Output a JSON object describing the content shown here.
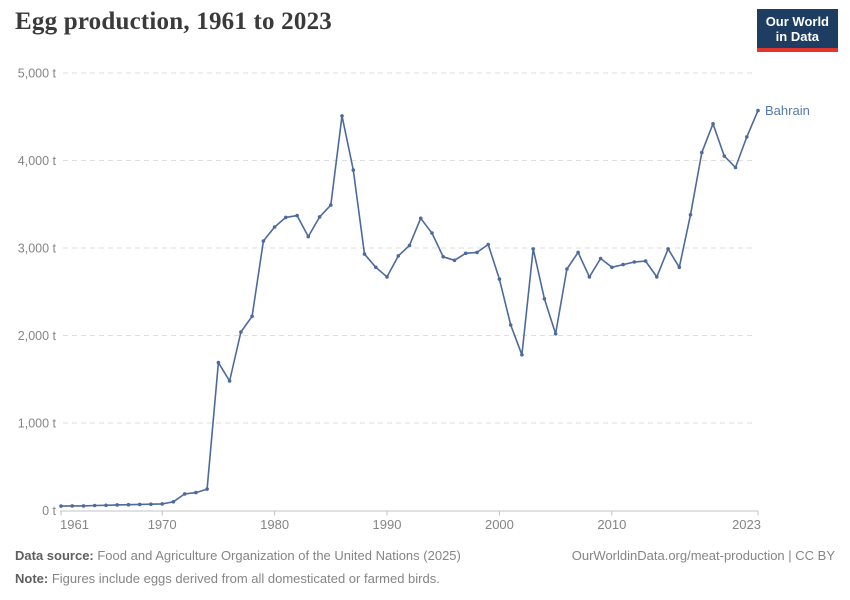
{
  "title": "Egg production, 1961 to 2023",
  "logo": {
    "line1": "Our World",
    "line2": "in Data"
  },
  "series_label": "Bahrain",
  "footer": {
    "source_label": "Data source:",
    "source_text": " Food and Agriculture Organization of the United Nations (2025)",
    "note_label": "Note:",
    "note_text": " Figures include eggs derived from all domesticated or farmed birds.",
    "credit": "OurWorldinData.org/meat-production | CC BY"
  },
  "colors": {
    "line": "#4C6A9C",
    "series_label": "#537AAD",
    "axis_text": "#858585",
    "gridline": "#dedede",
    "axis_line": "#c3c3c3",
    "logo_bg": "#1d3d63",
    "logo_accent": "#e0362b"
  },
  "chart_data": {
    "type": "line",
    "title": "Egg production, 1961 to 2023",
    "entity": "Bahrain",
    "unit": "t",
    "xlabel": "",
    "ylabel": "",
    "xlim": [
      1961,
      2023
    ],
    "ylim": [
      0,
      5000
    ],
    "grid": "horizontal-dashed",
    "legend_position": "end-of-line-label",
    "x_ticks": [
      1961,
      1970,
      1980,
      1990,
      2000,
      2010,
      2023
    ],
    "y_ticks": [
      {
        "value": 0,
        "label": "0 t"
      },
      {
        "value": 1000,
        "label": "1,000 t"
      },
      {
        "value": 2000,
        "label": "2,000 t"
      },
      {
        "value": 3000,
        "label": "3,000 t"
      },
      {
        "value": 4000,
        "label": "4,000 t"
      },
      {
        "value": 5000,
        "label": "5,000 t"
      }
    ],
    "x": [
      1961,
      1962,
      1963,
      1964,
      1965,
      1966,
      1967,
      1968,
      1969,
      1970,
      1971,
      1972,
      1973,
      1974,
      1975,
      1976,
      1977,
      1978,
      1979,
      1980,
      1981,
      1982,
      1983,
      1984,
      1985,
      1986,
      1987,
      1988,
      1989,
      1990,
      1991,
      1992,
      1993,
      1994,
      1995,
      1996,
      1997,
      1998,
      1999,
      2000,
      2001,
      2002,
      2003,
      2004,
      2005,
      2006,
      2007,
      2008,
      2009,
      2010,
      2011,
      2012,
      2013,
      2014,
      2015,
      2016,
      2017,
      2018,
      2019,
      2020,
      2021,
      2022,
      2023
    ],
    "values": [
      50,
      52,
      53,
      57,
      60,
      64,
      66,
      70,
      72,
      75,
      100,
      190,
      205,
      245,
      1690,
      1480,
      2040,
      2220,
      3080,
      3240,
      3350,
      3370,
      3130,
      3355,
      3490,
      4510,
      3890,
      2930,
      2780,
      2670,
      2910,
      3030,
      3340,
      3170,
      2900,
      2860,
      2940,
      2950,
      3040,
      2645,
      2120,
      1780,
      2990,
      2420,
      2020,
      2760,
      2950,
      2670,
      2880,
      2780,
      2810,
      2840,
      2850,
      2670,
      2990,
      2780,
      3380,
      4090,
      4420,
      4050,
      3920,
      4270,
      4570
    ]
  }
}
